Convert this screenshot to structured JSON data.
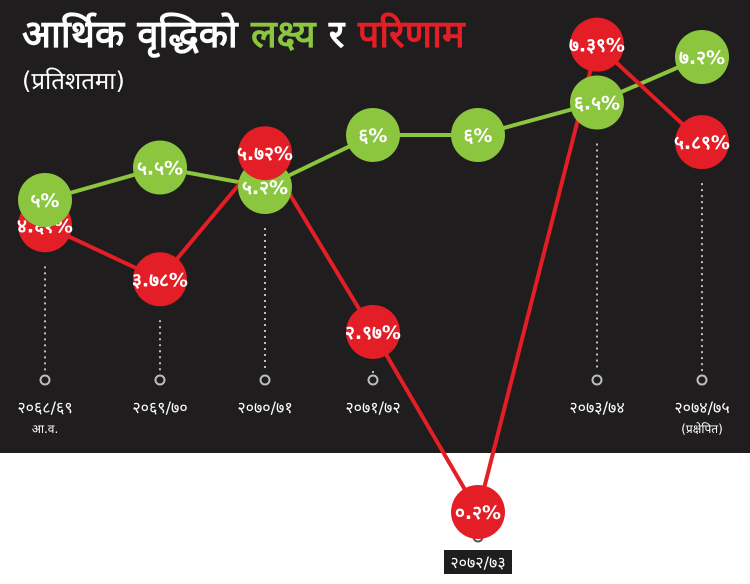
{
  "title": {
    "part1": "आर्थिक वृद्धिको ",
    "part2": "लक्ष्य",
    "part3": " र ",
    "part4": "परिणाम",
    "color_white": "#ffffff",
    "color_target": "#8cc63f",
    "color_result": "#e31e26"
  },
  "subtitle": "(प्रतिशतमा)",
  "chart_data": {
    "type": "line",
    "categories": [
      "२०६८/६९",
      "२०६९/७०",
      "२०७०/७१",
      "२०७१/७२",
      "२०७२/७३",
      "२०७३/७४",
      "२०७४/७५"
    ],
    "category_notes": [
      "आ.व.",
      "",
      "",
      "",
      "",
      "",
      "(प्रक्षेपित)"
    ],
    "series": [
      {
        "key": "target",
        "color": "#8cc63f",
        "values": [
          5,
          5.5,
          5.2,
          6,
          6,
          6.5,
          7.2
        ],
        "labels": [
          "५%",
          "५.५%",
          "५.२%",
          "६%",
          "६%",
          "६.५%",
          "७.२%"
        ]
      },
      {
        "key": "result",
        "color": "#e31e26",
        "values": [
          4.61,
          3.78,
          5.72,
          2.97,
          0.2,
          7.39,
          5.89
        ],
        "labels": [
          "४.६१%",
          "३.७८%",
          "५.७२%",
          "२.९७%",
          "०.२%",
          "७.३९%",
          "५.८९%"
        ]
      }
    ],
    "grid": false,
    "legend": "in title"
  }
}
